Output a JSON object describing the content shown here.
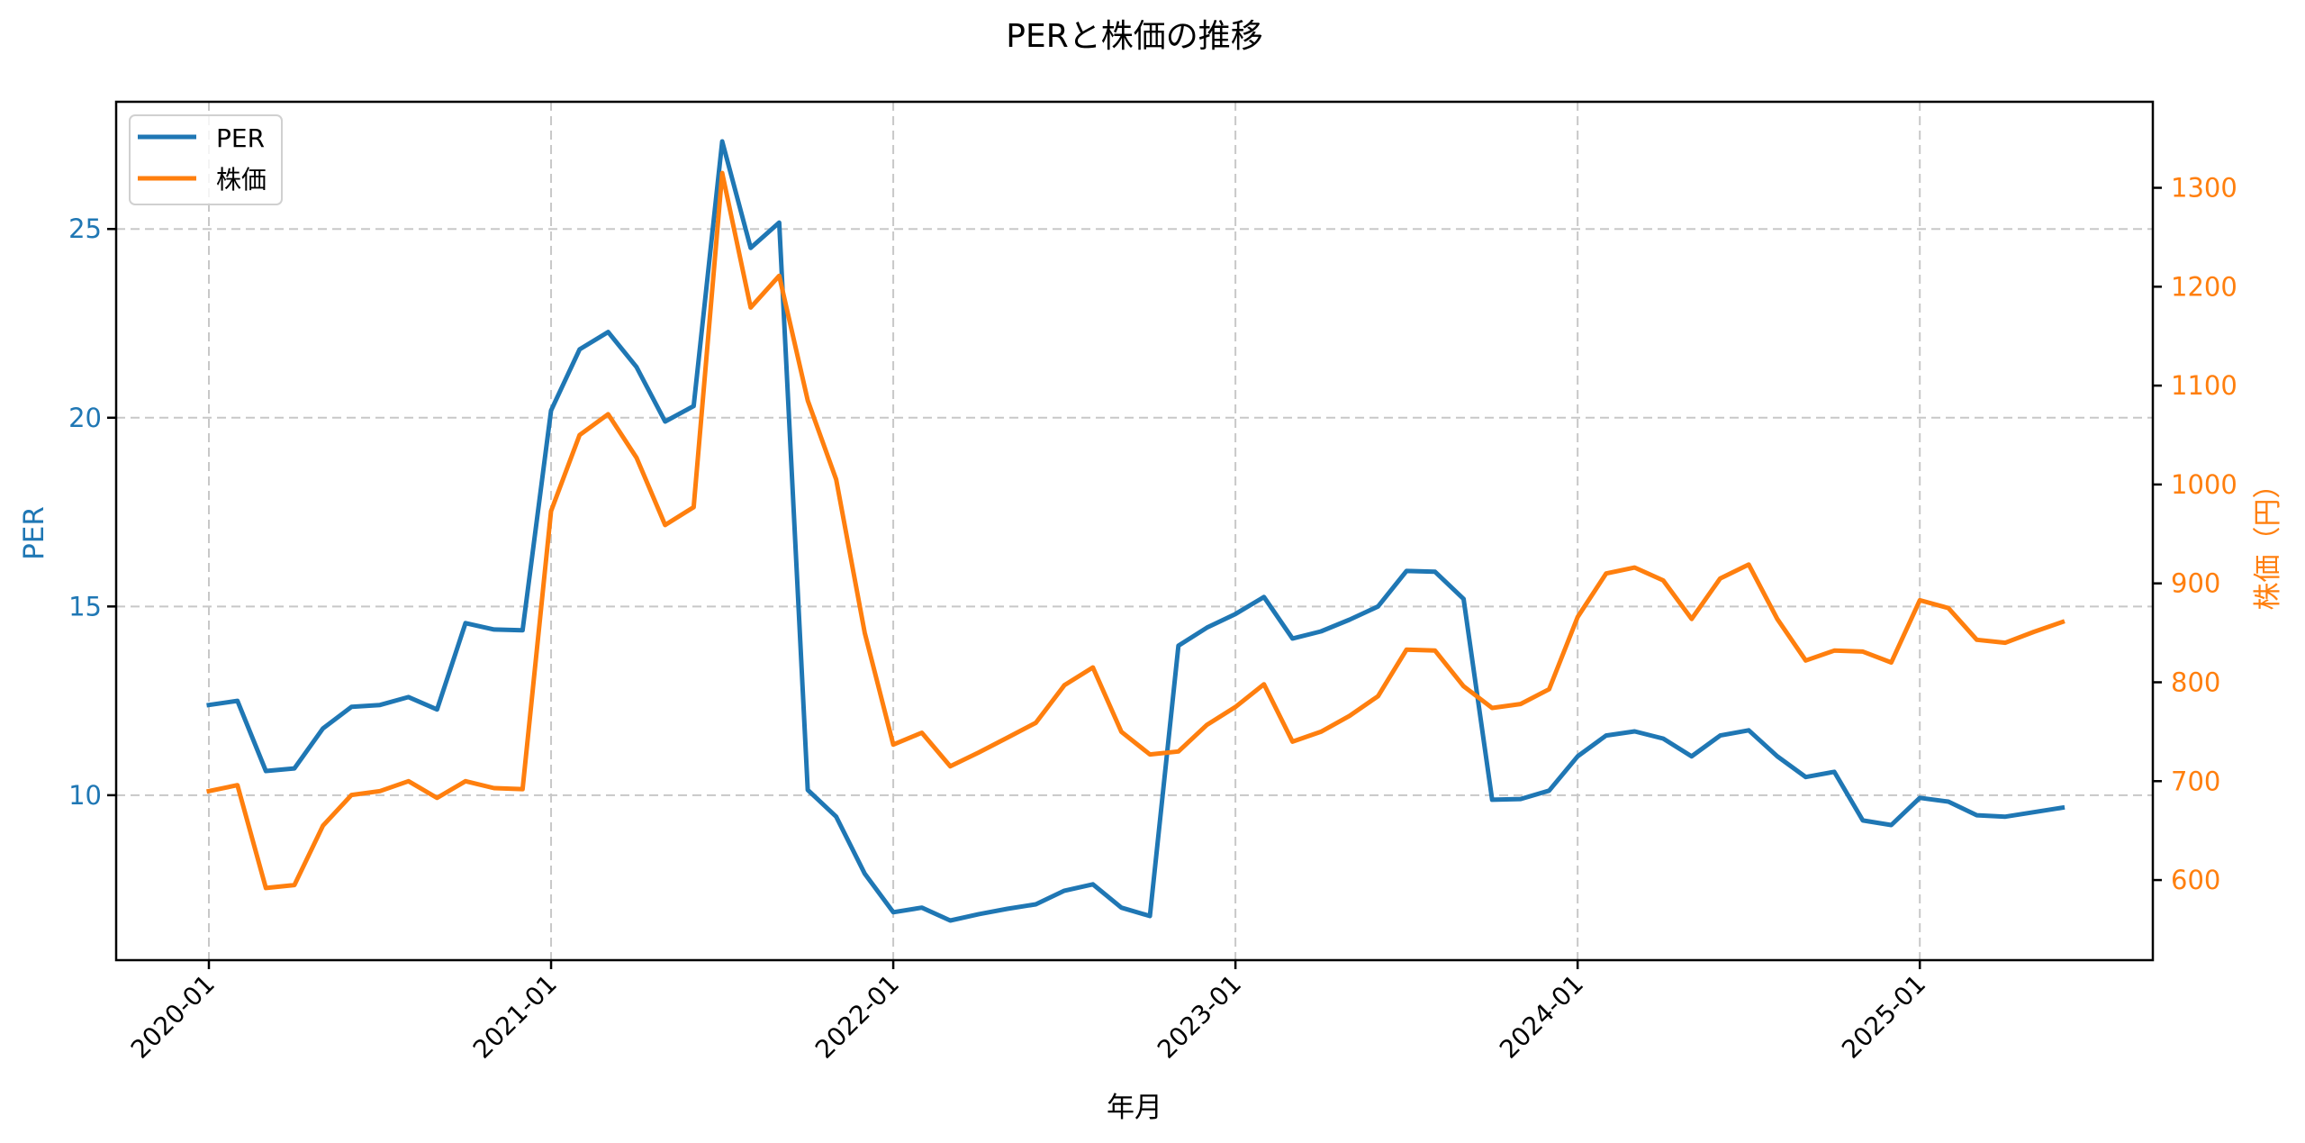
{
  "chart_data": {
    "type": "line",
    "title": "PERと株価の推移",
    "xlabel": "年月",
    "ylabel": "PER",
    "ylabel_right": "株価（円）",
    "ylim": [
      5.63,
      28.37
    ],
    "ylim_right": [
      519,
      1387
    ],
    "yticks": [
      10,
      15,
      20,
      25
    ],
    "yticks_right": [
      600,
      700,
      800,
      900,
      1000,
      1100,
      1200,
      1300
    ],
    "xticks": [
      "2020-01",
      "2021-01",
      "2022-01",
      "2023-01",
      "2024-01",
      "2025-01"
    ],
    "grid": true,
    "legend_position": "upper left",
    "x": [
      "2020-01",
      "2020-02",
      "2020-03",
      "2020-04",
      "2020-05",
      "2020-06",
      "2020-07",
      "2020-08",
      "2020-09",
      "2020-10",
      "2020-11",
      "2020-12",
      "2021-01",
      "2021-02",
      "2021-03",
      "2021-04",
      "2021-05",
      "2021-06",
      "2021-07",
      "2021-08",
      "2021-09",
      "2021-10",
      "2021-11",
      "2021-12",
      "2022-01",
      "2022-02",
      "2022-03",
      "2022-04",
      "2022-05",
      "2022-06",
      "2022-07",
      "2022-08",
      "2022-09",
      "2022-10",
      "2022-11",
      "2022-12",
      "2023-01",
      "2023-02",
      "2023-03",
      "2023-04",
      "2023-05",
      "2023-06",
      "2023-07",
      "2023-08",
      "2023-09",
      "2023-10",
      "2023-11",
      "2023-12",
      "2024-01",
      "2024-02",
      "2024-03",
      "2024-04",
      "2024-05",
      "2024-06",
      "2024-07",
      "2024-08",
      "2024-09",
      "2024-10",
      "2024-11",
      "2024-12",
      "2025-01",
      "2025-02",
      "2025-03",
      "2025-04",
      "2025-05",
      "2025-06"
    ],
    "series": [
      {
        "name": "PER",
        "axis": "left",
        "color": "#1f77b4",
        "values": [
          12.39,
          12.5,
          10.64,
          10.71,
          11.77,
          12.34,
          12.39,
          12.6,
          12.27,
          14.56,
          14.39,
          14.37,
          20.19,
          21.81,
          22.27,
          21.34,
          19.9,
          20.31,
          27.32,
          24.5,
          25.17,
          10.14,
          9.43,
          7.92,
          6.9,
          7.02,
          6.68,
          6.85,
          6.99,
          7.11,
          7.47,
          7.64,
          7.02,
          6.8,
          13.96,
          14.44,
          14.8,
          15.25,
          14.15,
          14.34,
          14.65,
          15.0,
          15.94,
          15.92,
          15.2,
          9.88,
          9.9,
          10.12,
          11.03,
          11.58,
          11.69,
          11.5,
          11.03,
          11.58,
          11.72,
          11.03,
          10.48,
          10.62,
          9.33,
          9.21,
          9.93,
          9.83,
          9.47,
          9.43,
          9.55,
          9.67
        ]
      },
      {
        "name": "株価",
        "axis": "right",
        "color": "#ff7f0e",
        "values": [
          690,
          696,
          592,
          595,
          655,
          686,
          690,
          700,
          683,
          700,
          693,
          692,
          973,
          1050,
          1071,
          1027,
          959,
          977,
          1315,
          1179,
          1211,
          1085,
          1005,
          850,
          737,
          749,
          715,
          729,
          744,
          759,
          797,
          815,
          750,
          727,
          730,
          757,
          775,
          798,
          740,
          750,
          766,
          786,
          833,
          832,
          796,
          774,
          778,
          793,
          866,
          910,
          916,
          903,
          864,
          905,
          919,
          864,
          822,
          832,
          831,
          820,
          883,
          875,
          843,
          840,
          851,
          861
        ]
      }
    ]
  },
  "legend": {
    "items": [
      {
        "label": "PER",
        "color": "#1f77b4"
      },
      {
        "label": "株価",
        "color": "#ff7f0e"
      }
    ]
  }
}
